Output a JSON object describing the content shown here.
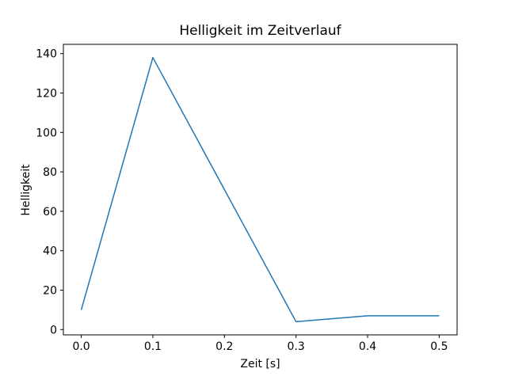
{
  "chart_data": {
    "type": "line",
    "title": "Helligkeit im Zeitverlauf",
    "xlabel": "Zeit [s]",
    "ylabel": "Helligkeit",
    "x": [
      0.0,
      0.1,
      0.2,
      0.3,
      0.4,
      0.5
    ],
    "y": [
      10,
      138,
      71,
      4,
      7,
      7
    ],
    "x_ticks": [
      0.0,
      0.1,
      0.2,
      0.3,
      0.4,
      0.5
    ],
    "x_tick_labels": [
      "0.0",
      "0.1",
      "0.2",
      "0.3",
      "0.4",
      "0.5"
    ],
    "y_ticks": [
      0,
      20,
      40,
      60,
      80,
      100,
      120,
      140
    ],
    "y_tick_labels": [
      "0",
      "20",
      "40",
      "60",
      "80",
      "100",
      "120",
      "140"
    ],
    "xlim": [
      -0.025,
      0.525
    ],
    "ylim": [
      -2.7,
      144.7
    ],
    "grid": false,
    "legend": null,
    "line_color": "#1f77b4",
    "line_width": 1.5,
    "spine_color": "#000000",
    "text_color": "#000000",
    "background_color": "#ffffff"
  }
}
